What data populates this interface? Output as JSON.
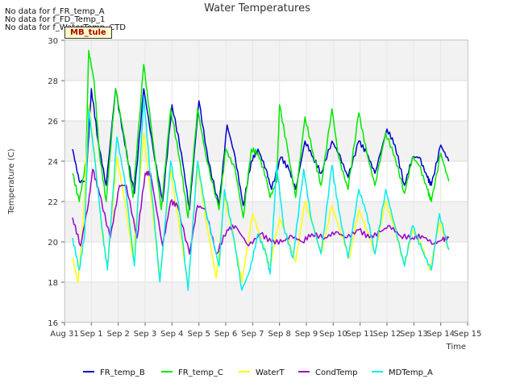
{
  "messages": [
    "No data for f_FR_temp_A",
    "No data for f_FD_Temp_1",
    "No data for f_WaterTemp_CTD"
  ],
  "tooltip": "MB_tule",
  "chart_data": {
    "type": "line",
    "title": "Water Temperatures",
    "xlabel": "Time",
    "ylabel": "Temperature (C)",
    "ylim": [
      16,
      30
    ],
    "xlim": [
      0,
      15
    ],
    "yticks": [
      16,
      18,
      20,
      22,
      24,
      26,
      28,
      30
    ],
    "x_tick_labels": [
      "Aug 31",
      "Sep 1",
      "Sep 2",
      "Sep 3",
      "Sep 4",
      "Sep 5",
      "Sep 6",
      "Sep 7",
      "Sep 8",
      "Sep 9",
      "Sep 10",
      "Sep 11",
      "Sep 12",
      "Sep 13",
      "Sep 14",
      "Sep 15"
    ],
    "grid": true,
    "banded_background": true,
    "legend_position": "bottom",
    "series": [
      {
        "name": "FR_temp_B",
        "color": "#0000cc",
        "points": [
          [
            0.3,
            24.6
          ],
          [
            0.55,
            23.0
          ],
          [
            0.8,
            23.0
          ],
          [
            1.0,
            27.6
          ],
          [
            1.25,
            25.0
          ],
          [
            1.55,
            22.8
          ],
          [
            1.9,
            27.6
          ],
          [
            2.25,
            24.8
          ],
          [
            2.6,
            22.4
          ],
          [
            2.95,
            27.6
          ],
          [
            3.3,
            24.6
          ],
          [
            3.65,
            22.0
          ],
          [
            4.0,
            26.8
          ],
          [
            4.35,
            24.4
          ],
          [
            4.65,
            21.6
          ],
          [
            5.0,
            27.0
          ],
          [
            5.35,
            24.0
          ],
          [
            5.75,
            21.8
          ],
          [
            6.05,
            25.8
          ],
          [
            6.35,
            24.2
          ],
          [
            6.65,
            21.8
          ],
          [
            6.95,
            24.0
          ],
          [
            7.2,
            24.6
          ],
          [
            7.5,
            23.6
          ],
          [
            7.7,
            22.6
          ],
          [
            8.05,
            24.2
          ],
          [
            8.35,
            23.6
          ],
          [
            8.6,
            22.6
          ],
          [
            8.95,
            25.0
          ],
          [
            9.25,
            24.2
          ],
          [
            9.55,
            23.4
          ],
          [
            9.95,
            25.0
          ],
          [
            10.2,
            24.4
          ],
          [
            10.55,
            23.2
          ],
          [
            10.95,
            25.0
          ],
          [
            11.25,
            24.4
          ],
          [
            11.55,
            23.4
          ],
          [
            12.0,
            25.6
          ],
          [
            12.3,
            24.8
          ],
          [
            12.65,
            22.8
          ],
          [
            12.95,
            24.2
          ],
          [
            13.2,
            24.2
          ],
          [
            13.5,
            23.2
          ],
          [
            13.65,
            22.8
          ],
          [
            14.0,
            24.8
          ],
          [
            14.3,
            24.0
          ]
        ]
      },
      {
        "name": "FR_temp_C",
        "color": "#00e800",
        "points": [
          [
            0.3,
            23.4
          ],
          [
            0.55,
            22.0
          ],
          [
            0.8,
            24.0
          ],
          [
            0.9,
            29.5
          ],
          [
            1.1,
            28.0
          ],
          [
            1.3,
            24.4
          ],
          [
            1.55,
            22.0
          ],
          [
            1.9,
            27.6
          ],
          [
            2.2,
            25.4
          ],
          [
            2.55,
            22.2
          ],
          [
            2.95,
            28.8
          ],
          [
            3.2,
            26.0
          ],
          [
            3.6,
            21.6
          ],
          [
            3.95,
            26.6
          ],
          [
            4.3,
            24.0
          ],
          [
            4.6,
            21.2
          ],
          [
            4.95,
            26.6
          ],
          [
            5.3,
            24.0
          ],
          [
            5.75,
            21.6
          ],
          [
            6.0,
            24.6
          ],
          [
            6.35,
            23.6
          ],
          [
            6.65,
            21.2
          ],
          [
            6.95,
            24.6
          ],
          [
            7.2,
            24.4
          ],
          [
            7.5,
            23.2
          ],
          [
            7.65,
            22.2
          ],
          [
            7.9,
            23.0
          ],
          [
            8.0,
            26.8
          ],
          [
            8.3,
            24.6
          ],
          [
            8.6,
            22.2
          ],
          [
            8.95,
            26.2
          ],
          [
            9.25,
            24.4
          ],
          [
            9.55,
            22.8
          ],
          [
            9.95,
            26.6
          ],
          [
            10.2,
            24.2
          ],
          [
            10.55,
            22.6
          ],
          [
            10.95,
            26.4
          ],
          [
            11.25,
            24.4
          ],
          [
            11.55,
            22.8
          ],
          [
            11.95,
            25.4
          ],
          [
            12.3,
            24.2
          ],
          [
            12.65,
            22.4
          ],
          [
            12.95,
            24.2
          ],
          [
            13.2,
            23.8
          ],
          [
            13.5,
            22.6
          ],
          [
            13.65,
            22.0
          ],
          [
            14.0,
            24.4
          ],
          [
            14.3,
            23.0
          ]
        ]
      },
      {
        "name": "WaterT",
        "color": "#ffff00",
        "points": [
          [
            0.3,
            19.2
          ],
          [
            0.5,
            18.0
          ],
          [
            0.7,
            21.0
          ],
          [
            0.9,
            26.8
          ],
          [
            1.15,
            24.0
          ],
          [
            1.4,
            20.4
          ],
          [
            1.6,
            18.8
          ],
          [
            1.95,
            24.2
          ],
          [
            2.25,
            22.0
          ],
          [
            2.55,
            19.2
          ],
          [
            2.95,
            25.4
          ],
          [
            3.2,
            22.4
          ],
          [
            3.55,
            18.2
          ],
          [
            3.95,
            23.6
          ],
          [
            4.25,
            21.0
          ],
          [
            4.6,
            17.8
          ],
          [
            4.95,
            23.8
          ],
          [
            5.3,
            20.8
          ],
          [
            5.65,
            18.2
          ],
          [
            5.95,
            22.2
          ],
          [
            6.3,
            20.2
          ],
          [
            6.6,
            18.0
          ],
          [
            7.0,
            21.4
          ],
          [
            7.3,
            20.2
          ],
          [
            7.65,
            18.8
          ],
          [
            8.0,
            21.2
          ],
          [
            8.25,
            20.4
          ],
          [
            8.6,
            19.0
          ],
          [
            8.95,
            22.0
          ],
          [
            9.25,
            20.8
          ],
          [
            9.55,
            19.4
          ],
          [
            9.95,
            21.8
          ],
          [
            10.25,
            20.6
          ],
          [
            10.6,
            19.2
          ],
          [
            10.95,
            21.6
          ],
          [
            11.25,
            20.6
          ],
          [
            11.55,
            19.4
          ],
          [
            11.95,
            22.0
          ],
          [
            12.25,
            20.8
          ],
          [
            12.65,
            18.8
          ],
          [
            12.95,
            20.6
          ],
          [
            13.25,
            20.0
          ],
          [
            13.6,
            18.6
          ],
          [
            13.95,
            21.0
          ],
          [
            14.3,
            19.6
          ]
        ]
      },
      {
        "name": "CondTemp",
        "color": "#9900cc",
        "points": [
          [
            0.3,
            21.2
          ],
          [
            0.6,
            19.8
          ],
          [
            0.9,
            22.0
          ],
          [
            1.05,
            23.6
          ],
          [
            1.3,
            22.4
          ],
          [
            1.7,
            20.2
          ],
          [
            2.05,
            22.8
          ],
          [
            2.3,
            22.8
          ],
          [
            2.7,
            20.2
          ],
          [
            3.0,
            23.4
          ],
          [
            3.2,
            23.4
          ],
          [
            3.65,
            19.8
          ],
          [
            3.95,
            22.0
          ],
          [
            4.2,
            21.8
          ],
          [
            4.65,
            19.4
          ],
          [
            4.95,
            21.8
          ],
          [
            5.25,
            21.6
          ],
          [
            5.65,
            19.4
          ],
          [
            6.05,
            20.6
          ],
          [
            6.35,
            20.8
          ],
          [
            6.85,
            19.8
          ],
          [
            7.3,
            20.4
          ],
          [
            7.7,
            20.0
          ],
          [
            8.1,
            20.0
          ],
          [
            8.45,
            20.3
          ],
          [
            8.85,
            20.0
          ],
          [
            9.2,
            20.4
          ],
          [
            9.7,
            20.2
          ],
          [
            10.1,
            20.5
          ],
          [
            10.5,
            20.2
          ],
          [
            10.95,
            20.6
          ],
          [
            11.35,
            20.2
          ],
          [
            11.75,
            20.5
          ],
          [
            12.1,
            20.8
          ],
          [
            12.5,
            20.3
          ],
          [
            12.95,
            20.2
          ],
          [
            13.3,
            20.3
          ],
          [
            13.75,
            19.9
          ],
          [
            14.05,
            20.1
          ],
          [
            14.3,
            20.2
          ]
        ]
      },
      {
        "name": "MDTemp_A",
        "color": "#00eeee",
        "points": [
          [
            0.3,
            20.2
          ],
          [
            0.55,
            18.6
          ],
          [
            0.75,
            20.4
          ],
          [
            0.9,
            26.6
          ],
          [
            1.1,
            24.4
          ],
          [
            1.4,
            20.6
          ],
          [
            1.6,
            18.6
          ],
          [
            1.95,
            25.2
          ],
          [
            2.25,
            23.0
          ],
          [
            2.6,
            18.8
          ],
          [
            2.95,
            27.2
          ],
          [
            3.2,
            23.2
          ],
          [
            3.55,
            18.0
          ],
          [
            3.95,
            24.0
          ],
          [
            4.25,
            21.8
          ],
          [
            4.6,
            17.6
          ],
          [
            4.95,
            24.0
          ],
          [
            5.25,
            21.6
          ],
          [
            5.75,
            18.8
          ],
          [
            5.95,
            22.6
          ],
          [
            6.3,
            20.2
          ],
          [
            6.6,
            17.6
          ],
          [
            6.9,
            18.6
          ],
          [
            7.2,
            20.4
          ],
          [
            7.5,
            19.4
          ],
          [
            7.65,
            18.4
          ],
          [
            7.9,
            23.8
          ],
          [
            8.15,
            20.8
          ],
          [
            8.5,
            19.2
          ],
          [
            8.9,
            23.6
          ],
          [
            9.2,
            21.0
          ],
          [
            9.55,
            19.4
          ],
          [
            9.95,
            23.8
          ],
          [
            10.2,
            21.6
          ],
          [
            10.55,
            19.2
          ],
          [
            10.95,
            22.6
          ],
          [
            11.25,
            21.4
          ],
          [
            11.55,
            19.4
          ],
          [
            11.95,
            22.6
          ],
          [
            12.25,
            21.0
          ],
          [
            12.65,
            18.8
          ],
          [
            12.95,
            20.8
          ],
          [
            13.3,
            19.6
          ],
          [
            13.65,
            18.6
          ],
          [
            13.95,
            21.4
          ],
          [
            14.3,
            19.6
          ]
        ]
      }
    ]
  }
}
